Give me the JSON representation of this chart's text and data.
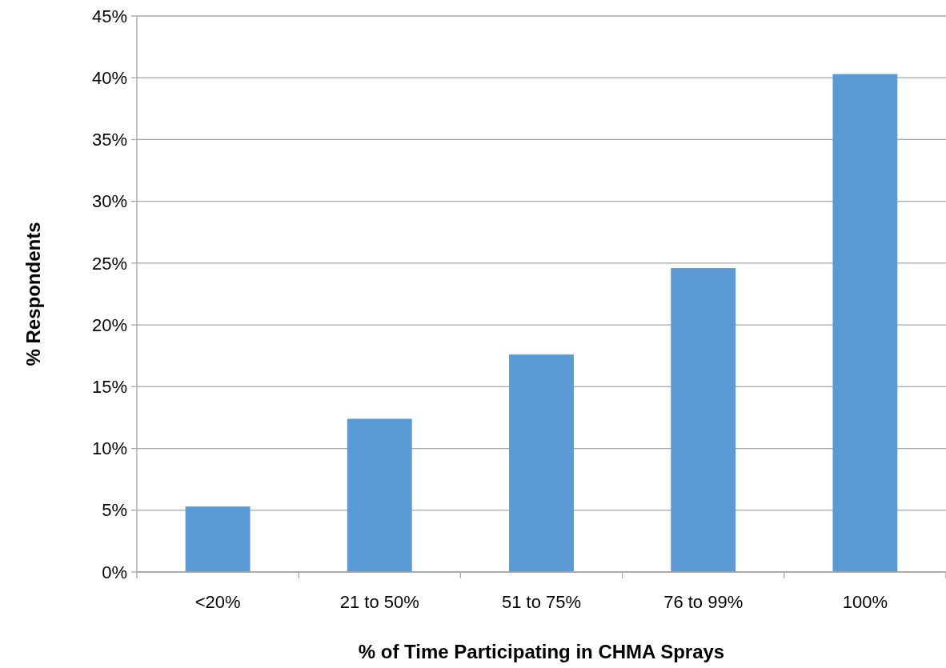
{
  "chart_data": {
    "type": "bar",
    "xlabel": "% of Time Participating in CHMA Sprays",
    "ylabel": "% Respondents",
    "categories": [
      "<20%",
      "21 to 50%",
      "51 to 75%",
      "76 to 99%",
      "100%"
    ],
    "values": [
      5.3,
      12.4,
      17.6,
      24.6,
      40.3
    ],
    "color": "#5b9bd5",
    "ylim": [
      0,
      45
    ],
    "yticks": [
      {
        "value": 0,
        "label": "0%"
      },
      {
        "value": 5,
        "label": "5%"
      },
      {
        "value": 10,
        "label": "10%"
      },
      {
        "value": 15,
        "label": "15%"
      },
      {
        "value": 20,
        "label": "20%"
      },
      {
        "value": 25,
        "label": "25%"
      },
      {
        "value": 30,
        "label": "30%"
      },
      {
        "value": 35,
        "label": "35%"
      },
      {
        "value": 40,
        "label": "40%"
      },
      {
        "value": 45,
        "label": "45%"
      }
    ],
    "grid": "y"
  }
}
